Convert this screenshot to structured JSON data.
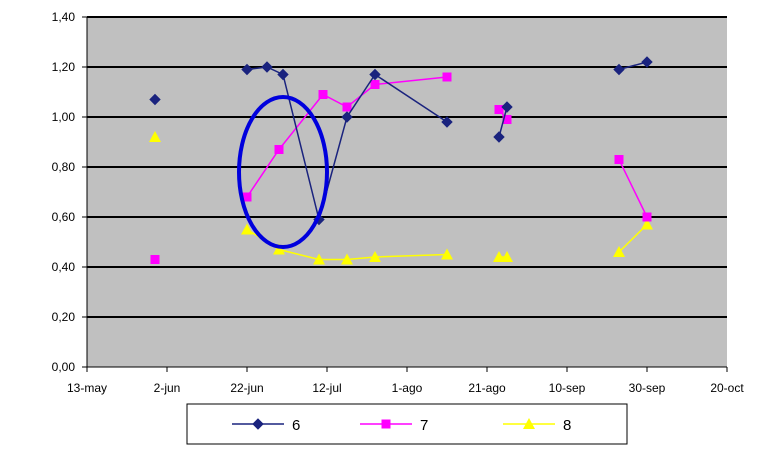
{
  "chart_data": {
    "type": "line",
    "title": "",
    "xlabel": "",
    "ylabel": "",
    "x_tick_labels": [
      "13-may",
      "2-jun",
      "22-jun",
      "12-jul",
      "1-ago",
      "21-ago",
      "10-sep",
      "30-sep",
      "20-oct"
    ],
    "x_range": [
      "2008-05-13",
      "2008-10-20"
    ],
    "y_tick_labels": [
      "0,00",
      "0,20",
      "0,40",
      "0,60",
      "0,80",
      "1,00",
      "1,20",
      "1,40"
    ],
    "ylim": [
      0,
      1.4
    ],
    "y_tick_step": 0.2,
    "grid": true,
    "plot_background": "#c0c0c0",
    "legend_position": "bottom",
    "series": [
      {
        "name": "6",
        "color": "#1a237e",
        "marker": "diamond",
        "segments": [
          [
            [
              "2008-05-30",
              1.07
            ]
          ],
          [
            [
              "2008-06-22",
              1.19
            ],
            [
              "2008-06-27",
              1.2
            ],
            [
              "2008-07-01",
              1.17
            ],
            [
              "2008-07-10",
              0.59
            ],
            [
              "2008-07-17",
              1.0
            ],
            [
              "2008-07-24",
              1.17
            ],
            [
              "2008-08-11",
              0.98
            ]
          ],
          [
            [
              "2008-08-24",
              0.92
            ],
            [
              "2008-08-26",
              1.04
            ]
          ],
          [
            [
              "2008-09-23",
              1.19
            ],
            [
              "2008-09-30",
              1.22
            ]
          ]
        ]
      },
      {
        "name": "7",
        "color": "#ff00ff",
        "marker": "square",
        "segments": [
          [
            [
              "2008-05-30",
              0.43
            ]
          ],
          [
            [
              "2008-06-22",
              0.68
            ],
            [
              "2008-06-30",
              0.87
            ],
            [
              "2008-07-11",
              1.09
            ],
            [
              "2008-07-17",
              1.04
            ],
            [
              "2008-07-24",
              1.13
            ],
            [
              "2008-08-11",
              1.16
            ]
          ],
          [
            [
              "2008-08-24",
              1.03
            ],
            [
              "2008-08-26",
              0.99
            ]
          ],
          [
            [
              "2008-09-23",
              0.83
            ],
            [
              "2008-09-30",
              0.6
            ]
          ]
        ]
      },
      {
        "name": "8",
        "color": "#ffff00",
        "marker": "triangle",
        "segments": [
          [
            [
              "2008-05-30",
              0.92
            ]
          ],
          [
            [
              "2008-06-22",
              0.55
            ],
            [
              "2008-06-30",
              0.47
            ],
            [
              "2008-07-10",
              0.43
            ],
            [
              "2008-07-17",
              0.43
            ],
            [
              "2008-07-24",
              0.44
            ],
            [
              "2008-08-11",
              0.45
            ]
          ],
          [
            [
              "2008-08-24",
              0.44
            ],
            [
              "2008-08-26",
              0.44
            ]
          ],
          [
            [
              "2008-09-23",
              0.46
            ],
            [
              "2008-09-30",
              0.57
            ]
          ]
        ]
      }
    ],
    "annotations": [
      {
        "type": "circle",
        "color": "#0000dd",
        "center": [
          "2008-07-01",
          0.78
        ],
        "radius_x_days": 11,
        "radius_y": 0.3
      }
    ]
  }
}
